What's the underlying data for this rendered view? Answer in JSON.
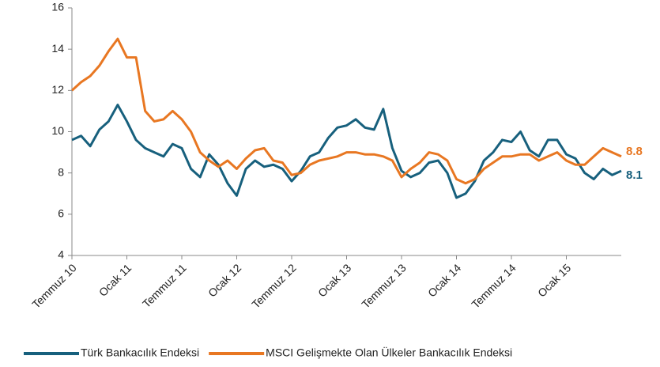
{
  "chart_data": {
    "type": "line",
    "categories": [
      "Temmuz 10",
      null,
      null,
      null,
      null,
      null,
      "Ocak 11",
      null,
      null,
      null,
      null,
      null,
      "Temmuz 11",
      null,
      null,
      null,
      null,
      null,
      "Ocak 12",
      null,
      null,
      null,
      null,
      null,
      "Temmuz 12",
      null,
      null,
      null,
      null,
      null,
      "Ocak 13",
      null,
      null,
      null,
      null,
      null,
      "Temmuz 13",
      null,
      null,
      null,
      null,
      null,
      "Ocak 14",
      null,
      null,
      null,
      null,
      null,
      "Temmuz 14",
      null,
      null,
      null,
      null,
      null,
      "Ocak 15",
      null,
      null,
      null,
      null,
      null,
      null
    ],
    "series": [
      {
        "name": "Türk Bankacılık Endeksi",
        "color": "#17607d",
        "label_last": true,
        "values": [
          9.6,
          9.8,
          9.3,
          10.1,
          10.5,
          11.3,
          10.5,
          9.6,
          9.2,
          9.0,
          8.8,
          9.4,
          9.2,
          8.2,
          7.8,
          8.9,
          8.4,
          7.5,
          6.9,
          8.2,
          8.6,
          8.3,
          8.4,
          8.2,
          7.6,
          8.1,
          8.8,
          9.0,
          9.7,
          10.2,
          10.3,
          10.6,
          10.2,
          10.1,
          11.1,
          9.2,
          8.1,
          7.8,
          8.0,
          8.5,
          8.6,
          8.0,
          6.8,
          7.0,
          7.6,
          8.6,
          9.0,
          9.6,
          9.5,
          10.0,
          9.1,
          8.8,
          9.6,
          9.6,
          8.9,
          8.7,
          8.0,
          7.7,
          8.2,
          7.9,
          8.1
        ]
      },
      {
        "name": "MSCI Gelişmekte Olan Ülkeler Bankacılık Endeksi",
        "color": "#e87722",
        "label_last": true,
        "values": [
          12.0,
          12.4,
          12.7,
          13.2,
          13.9,
          14.5,
          13.6,
          13.6,
          11.0,
          10.5,
          10.6,
          11.0,
          10.6,
          10.0,
          9.0,
          8.6,
          8.3,
          8.6,
          8.2,
          8.7,
          9.1,
          9.2,
          8.6,
          8.5,
          7.9,
          8.0,
          8.4,
          8.6,
          8.7,
          8.8,
          9.0,
          9.0,
          8.9,
          8.9,
          8.8,
          8.6,
          7.8,
          8.2,
          8.5,
          9.0,
          8.9,
          8.6,
          7.7,
          7.5,
          7.7,
          8.2,
          8.5,
          8.8,
          8.8,
          8.9,
          8.9,
          8.6,
          8.8,
          9.0,
          8.6,
          8.4,
          8.4,
          8.8,
          9.2,
          9.0,
          8.8
        ]
      }
    ],
    "ylim": [
      4,
      16
    ],
    "yticks": [
      4,
      6,
      8,
      10,
      12,
      14,
      16
    ],
    "grid": false,
    "legend": "bottom"
  }
}
